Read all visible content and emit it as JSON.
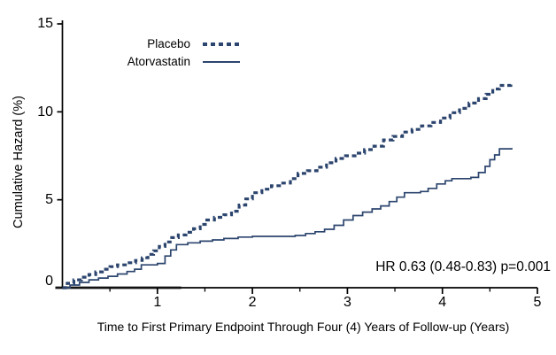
{
  "chart_data": {
    "type": "line",
    "subtype": "step-cumulative-hazard",
    "title": "",
    "xlabel": "Time to First Primary Endpoint Through Four (4) Years of Follow-up (Years)",
    "ylabel": "Cumulative Hazard (%)",
    "annotation": "HR 0.63 (0.48-0.83)  p=0.001",
    "xlim": [
      0,
      5
    ],
    "ylim": [
      0,
      15
    ],
    "x_ticks": [
      1,
      2,
      3,
      4,
      5
    ],
    "x_minor_ticks": [
      0.5,
      1.5,
      2.5,
      3.5,
      4.5
    ],
    "y_ticks": [
      15,
      10,
      5,
      0
    ],
    "grid": false,
    "legend_position": "top-left-inside",
    "line_color": "#2C456E",
    "axis_color": "#000000",
    "gray_zero_segment": {
      "from": 0,
      "to": 1.25,
      "color": "#8c8c8c"
    },
    "series": [
      {
        "name": "Placebo",
        "style": "dotted",
        "points": [
          [
            0,
            0
          ],
          [
            0.05,
            0.25
          ],
          [
            0.12,
            0.45
          ],
          [
            0.2,
            0.6
          ],
          [
            0.28,
            0.75
          ],
          [
            0.35,
            0.9
          ],
          [
            0.42,
            1.05
          ],
          [
            0.5,
            1.2
          ],
          [
            0.58,
            1.3
          ],
          [
            0.68,
            1.42
          ],
          [
            0.77,
            1.55
          ],
          [
            0.84,
            1.7
          ],
          [
            0.9,
            1.9
          ],
          [
            0.96,
            2.1
          ],
          [
            1.02,
            2.35
          ],
          [
            1.08,
            2.6
          ],
          [
            1.15,
            2.85
          ],
          [
            1.22,
            3.0
          ],
          [
            1.3,
            3.15
          ],
          [
            1.38,
            3.35
          ],
          [
            1.45,
            3.6
          ],
          [
            1.52,
            3.85
          ],
          [
            1.6,
            4.0
          ],
          [
            1.7,
            4.15
          ],
          [
            1.78,
            4.35
          ],
          [
            1.86,
            4.7
          ],
          [
            1.93,
            5.05
          ],
          [
            2.0,
            5.4
          ],
          [
            2.1,
            5.6
          ],
          [
            2.2,
            5.8
          ],
          [
            2.3,
            5.95
          ],
          [
            2.4,
            6.2
          ],
          [
            2.48,
            6.5
          ],
          [
            2.58,
            6.65
          ],
          [
            2.68,
            6.85
          ],
          [
            2.78,
            7.1
          ],
          [
            2.88,
            7.35
          ],
          [
            2.98,
            7.5
          ],
          [
            3.08,
            7.65
          ],
          [
            3.18,
            7.85
          ],
          [
            3.28,
            8.05
          ],
          [
            3.38,
            8.4
          ],
          [
            3.48,
            8.6
          ],
          [
            3.58,
            8.85
          ],
          [
            3.68,
            9.0
          ],
          [
            3.78,
            9.2
          ],
          [
            3.88,
            9.4
          ],
          [
            3.98,
            9.65
          ],
          [
            4.08,
            9.95
          ],
          [
            4.18,
            10.2
          ],
          [
            4.28,
            10.5
          ],
          [
            4.38,
            10.75
          ],
          [
            4.46,
            11.0
          ],
          [
            4.53,
            11.3
          ],
          [
            4.6,
            11.5
          ],
          [
            4.72,
            11.55
          ]
        ]
      },
      {
        "name": "Atorvastatin",
        "style": "solid",
        "points": [
          [
            0,
            0
          ],
          [
            0.08,
            0.15
          ],
          [
            0.18,
            0.3
          ],
          [
            0.28,
            0.45
          ],
          [
            0.38,
            0.55
          ],
          [
            0.48,
            0.65
          ],
          [
            0.58,
            0.78
          ],
          [
            0.68,
            0.92
          ],
          [
            0.76,
            1.05
          ],
          [
            0.83,
            1.3
          ],
          [
            1.0,
            1.38
          ],
          [
            1.08,
            1.8
          ],
          [
            1.14,
            2.15
          ],
          [
            1.2,
            2.45
          ],
          [
            1.32,
            2.55
          ],
          [
            1.45,
            2.65
          ],
          [
            1.58,
            2.72
          ],
          [
            1.7,
            2.8
          ],
          [
            1.85,
            2.88
          ],
          [
            2.0,
            2.92
          ],
          [
            2.45,
            2.97
          ],
          [
            2.56,
            3.08
          ],
          [
            2.66,
            3.18
          ],
          [
            2.76,
            3.32
          ],
          [
            2.86,
            3.55
          ],
          [
            2.96,
            3.85
          ],
          [
            3.06,
            4.1
          ],
          [
            3.16,
            4.3
          ],
          [
            3.26,
            4.48
          ],
          [
            3.35,
            4.65
          ],
          [
            3.44,
            4.9
          ],
          [
            3.52,
            5.15
          ],
          [
            3.6,
            5.4
          ],
          [
            3.77,
            5.47
          ],
          [
            3.85,
            5.65
          ],
          [
            3.94,
            5.9
          ],
          [
            4.03,
            6.08
          ],
          [
            4.1,
            6.2
          ],
          [
            4.3,
            6.27
          ],
          [
            4.38,
            6.55
          ],
          [
            4.45,
            6.9
          ],
          [
            4.5,
            7.28
          ],
          [
            4.55,
            7.55
          ],
          [
            4.6,
            7.9
          ],
          [
            4.73,
            7.95
          ]
        ]
      }
    ]
  }
}
